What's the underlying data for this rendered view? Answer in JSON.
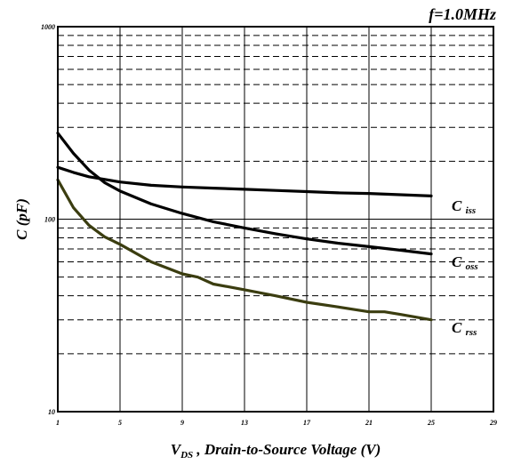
{
  "chart_data": {
    "type": "line",
    "title": "",
    "annotation": "f=1.0MHz",
    "xlabel": {
      "main": "V",
      "sub": "DS",
      "rest": " , Drain-to-Source Voltage (V)"
    },
    "ylabel": "C (pF)",
    "xlim": [
      1,
      29
    ],
    "ylim": [
      10,
      1000
    ],
    "y_scale": "log",
    "x_ticks": [
      1,
      5,
      9,
      13,
      17,
      21,
      25,
      29
    ],
    "y_ticks": [
      10,
      100,
      1000
    ],
    "grid": true,
    "legend": "inline-right",
    "series": [
      {
        "name": "C iss",
        "label_main": "C",
        "label_sub": "iss",
        "color": "#000000",
        "x": [
          1,
          2,
          3,
          5,
          7,
          9,
          11,
          13,
          15,
          17,
          19,
          21,
          23,
          25
        ],
        "values": [
          186,
          175,
          166,
          156,
          150,
          147,
          145,
          143,
          141,
          139,
          137,
          136,
          134,
          132
        ]
      },
      {
        "name": "C oss",
        "label_main": "C",
        "label_sub": "oss",
        "color": "#000000",
        "x": [
          1,
          2,
          3,
          4,
          5,
          7,
          9,
          11,
          13,
          15,
          17,
          19,
          21,
          23,
          25
        ],
        "values": [
          280,
          220,
          180,
          155,
          140,
          120,
          107,
          97,
          90,
          84,
          79,
          75,
          72,
          69,
          66
        ]
      },
      {
        "name": "C rss",
        "label_main": "C",
        "label_sub": "rss",
        "color": "#3b3d10",
        "x": [
          1,
          2,
          3,
          4,
          5,
          7,
          9,
          10,
          11,
          13,
          15,
          17,
          19,
          21,
          22,
          23,
          25
        ],
        "values": [
          160,
          115,
          93,
          81,
          74,
          60,
          52,
          50,
          46,
          43,
          40,
          37,
          35,
          33,
          33,
          32,
          30
        ]
      }
    ]
  }
}
